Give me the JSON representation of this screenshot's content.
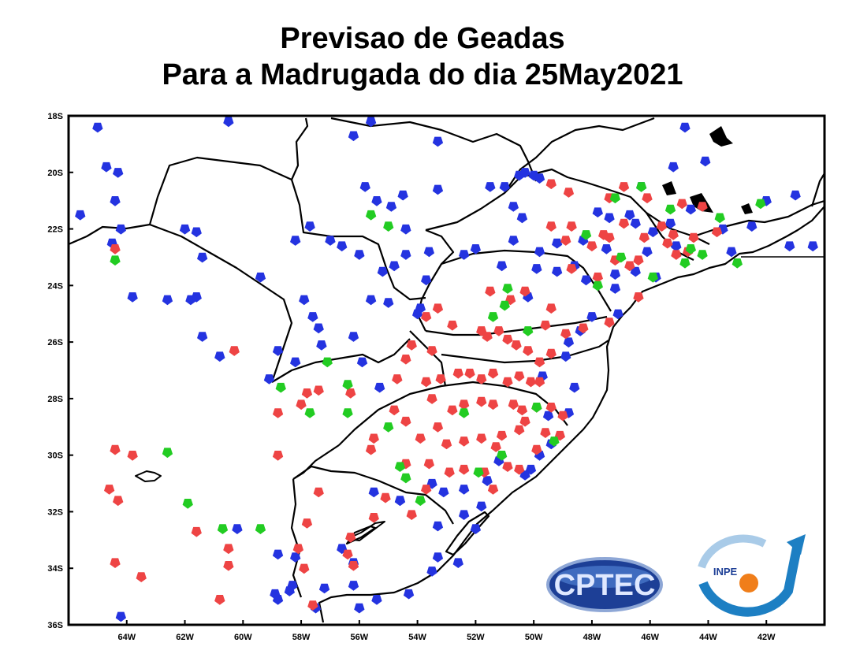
{
  "header": {
    "title_line1": "Previsao  de  Geadas",
    "title_line2": "Para a Madrugada do dia 25May2021"
  },
  "axes": {
    "y_ticks": [
      "18S",
      "20S",
      "22S",
      "24S",
      "26S",
      "28S",
      "30S",
      "32S",
      "34S",
      "36S"
    ],
    "x_ticks": [
      "64W",
      "62W",
      "60W",
      "58W",
      "56W",
      "54W",
      "52W",
      "50W",
      "48W",
      "46W",
      "44W",
      "42W"
    ],
    "lon_range": [
      -66,
      -40
    ],
    "lat_range": [
      -36,
      -18
    ]
  },
  "legend_colors": {
    "blue": "#2433e0",
    "red": "#ee4444",
    "green": "#22cc22"
  },
  "logos": {
    "cptec_text": "CPTEC",
    "inpe_text": "INPE"
  },
  "stations": {
    "blue": [
      [
        -65,
        -18.4
      ],
      [
        -60.5,
        -18.2
      ],
      [
        -64.7,
        -19.8
      ],
      [
        -64.3,
        -20
      ],
      [
        -56.2,
        -18.7
      ],
      [
        -55.6,
        -18.2
      ],
      [
        -53.3,
        -18.9
      ],
      [
        -65.6,
        -21.5
      ],
      [
        -64.4,
        -21
      ],
      [
        -64.2,
        -22
      ],
      [
        -64.5,
        -22.5
      ],
      [
        -62,
        -22
      ],
      [
        -61.4,
        -23
      ],
      [
        -59.4,
        -23.7
      ],
      [
        -58.2,
        -22.4
      ],
      [
        -57.7,
        -21.9
      ],
      [
        -57,
        -22.4
      ],
      [
        -55.8,
        -20.5
      ],
      [
        -55.4,
        -21
      ],
      [
        -54.9,
        -21.2
      ],
      [
        -54.5,
        -20.8
      ],
      [
        -53.3,
        -20.6
      ],
      [
        -54.4,
        -22
      ],
      [
        -54.4,
        -22.9
      ],
      [
        -54.8,
        -23.3
      ],
      [
        -55.2,
        -23.5
      ],
      [
        -56,
        -22.9
      ],
      [
        -56.6,
        -22.6
      ],
      [
        -55.6,
        -24.5
      ],
      [
        -55,
        -24.6
      ],
      [
        -53.9,
        -24.8
      ],
      [
        -54,
        -25
      ],
      [
        -53.6,
        -22.8
      ],
      [
        -53.7,
        -23.8
      ],
      [
        -52.4,
        -22.9
      ],
      [
        -52,
        -22.7
      ],
      [
        -51.5,
        -20.5
      ],
      [
        -51,
        -20.5
      ],
      [
        -50.7,
        -21.2
      ],
      [
        -50.5,
        -20.1
      ],
      [
        -50.3,
        -20
      ],
      [
        -50,
        -20.1
      ],
      [
        -49.8,
        -20.2
      ],
      [
        -50.4,
        -21.6
      ],
      [
        -50.7,
        -22.4
      ],
      [
        -49.8,
        -22.8
      ],
      [
        -49.2,
        -22.5
      ],
      [
        -48.3,
        -22.4
      ],
      [
        -47.8,
        -21.4
      ],
      [
        -47.4,
        -21.6
      ],
      [
        -46.7,
        -21.5
      ],
      [
        -46.5,
        -21.8
      ],
      [
        -45.9,
        -22.1
      ],
      [
        -45.3,
        -21.8
      ],
      [
        -46.1,
        -22.8
      ],
      [
        -45.1,
        -22.6
      ],
      [
        -45.8,
        -23.7
      ],
      [
        -46.5,
        -23.5
      ],
      [
        -47.2,
        -23.6
      ],
      [
        -47.5,
        -22.7
      ],
      [
        -48.6,
        -23.3
      ],
      [
        -48.2,
        -23.8
      ],
      [
        -49.2,
        -23.5
      ],
      [
        -49.9,
        -23.4
      ],
      [
        -50.2,
        -24.4
      ],
      [
        -51.1,
        -23.3
      ],
      [
        -47.2,
        -24.1
      ],
      [
        -47.1,
        -25
      ],
      [
        -48,
        -25.1
      ],
      [
        -48.4,
        -25.6
      ],
      [
        -48.8,
        -26
      ],
      [
        -48.9,
        -26.5
      ],
      [
        -43.2,
        -22.8
      ],
      [
        -43.5,
        -22
      ],
      [
        -42,
        -21
      ],
      [
        -42.5,
        -21.9
      ],
      [
        -41.2,
        -22.6
      ],
      [
        -41,
        -20.8
      ],
      [
        -40.4,
        -22.6
      ],
      [
        -44.8,
        -18.4
      ],
      [
        -45.2,
        -19.8
      ],
      [
        -44.1,
        -19.6
      ],
      [
        -44.6,
        -21.3
      ],
      [
        -46.3,
        -20.5
      ],
      [
        -63.8,
        -24.4
      ],
      [
        -62.6,
        -24.5
      ],
      [
        -61.8,
        -24.5
      ],
      [
        -61.4,
        -25.8
      ],
      [
        -60.8,
        -26.5
      ],
      [
        -59.1,
        -27.3
      ],
      [
        -57.9,
        -24.5
      ],
      [
        -57.6,
        -25.1
      ],
      [
        -57.4,
        -25.5
      ],
      [
        -57.3,
        -26.1
      ],
      [
        -58.8,
        -26.3
      ],
      [
        -58.2,
        -26.7
      ],
      [
        -56.2,
        -25.8
      ],
      [
        -55.9,
        -26.7
      ],
      [
        -55.3,
        -27.6
      ],
      [
        -49.7,
        -27.2
      ],
      [
        -49.5,
        -28.6
      ],
      [
        -48.6,
        -27.6
      ],
      [
        -48.8,
        -28.5
      ],
      [
        -49.4,
        -29.6
      ],
      [
        -49.8,
        -30
      ],
      [
        -50.1,
        -30.5
      ],
      [
        -50.3,
        -30.7
      ],
      [
        -51.1,
        -30
      ],
      [
        -51.2,
        -30.2
      ],
      [
        -51.6,
        -30.9
      ],
      [
        -52.4,
        -31.2
      ],
      [
        -53.1,
        -31.3
      ],
      [
        -53.5,
        -31
      ],
      [
        -55.5,
        -31.3
      ],
      [
        -54.6,
        -31.6
      ],
      [
        -56.6,
        -33.3
      ],
      [
        -56.2,
        -33.8
      ],
      [
        -56.2,
        -34.6
      ],
      [
        -57.2,
        -34.7
      ],
      [
        -58.2,
        -33.6
      ],
      [
        -58.3,
        -34.6
      ],
      [
        -58.4,
        -34.8
      ],
      [
        -57.5,
        -35.4
      ],
      [
        -56,
        -35.4
      ],
      [
        -55.4,
        -35.1
      ],
      [
        -54.3,
        -34.9
      ],
      [
        -53.5,
        -34.1
      ],
      [
        -53.3,
        -33.6
      ],
      [
        -53.3,
        -32.5
      ],
      [
        -52.4,
        -32.1
      ],
      [
        -52,
        -32.6
      ],
      [
        -51.8,
        -31.8
      ],
      [
        -52.6,
        -33.8
      ],
      [
        -54.6,
        -31.6
      ],
      [
        -60.2,
        -32.6
      ],
      [
        -61.6,
        -24.4
      ],
      [
        -61.6,
        -22.1
      ],
      [
        -64.2,
        -35.7
      ],
      [
        -58.8,
        -33.5
      ],
      [
        -58.8,
        -35.1
      ],
      [
        -58.9,
        -34.9
      ]
    ],
    "red": [
      [
        -64.4,
        -22.7
      ],
      [
        -64.4,
        -29.8
      ],
      [
        -63.8,
        -30
      ],
      [
        -64.6,
        -31.2
      ],
      [
        -64.3,
        -31.6
      ],
      [
        -64.4,
        -33.8
      ],
      [
        -63.5,
        -34.3
      ],
      [
        -61.6,
        -32.7
      ],
      [
        -60.8,
        -35.1
      ],
      [
        -60.5,
        -33.3
      ],
      [
        -60.5,
        -33.9
      ],
      [
        -60.3,
        -26.3
      ],
      [
        -58.8,
        -28.5
      ],
      [
        -58.8,
        -30
      ],
      [
        -58,
        -28.2
      ],
      [
        -57.8,
        -27.8
      ],
      [
        -57.4,
        -27.7
      ],
      [
        -56.3,
        -27.8
      ],
      [
        -54.7,
        -27.3
      ],
      [
        -54.2,
        -26.1
      ],
      [
        -54.4,
        -26.6
      ],
      [
        -53.5,
        -26.3
      ],
      [
        -53.7,
        -25.1
      ],
      [
        -52.8,
        -25.4
      ],
      [
        -51.8,
        -25.6
      ],
      [
        -51.6,
        -25.8
      ],
      [
        -51.2,
        -25.6
      ],
      [
        -50.9,
        -25.9
      ],
      [
        -50.6,
        -26.1
      ],
      [
        -50.2,
        -26.3
      ],
      [
        -49.8,
        -26.7
      ],
      [
        -49.4,
        -26.4
      ],
      [
        -49.8,
        -27.4
      ],
      [
        -50.1,
        -27.4
      ],
      [
        -50.5,
        -27.2
      ],
      [
        -50.9,
        -27.4
      ],
      [
        -51.4,
        -27.1
      ],
      [
        -51.8,
        -27.3
      ],
      [
        -52.2,
        -27.1
      ],
      [
        -52.6,
        -27.1
      ],
      [
        -53.2,
        -27.3
      ],
      [
        -53.7,
        -27.4
      ],
      [
        -53.5,
        -28
      ],
      [
        -52.8,
        -28.4
      ],
      [
        -52.4,
        -28.2
      ],
      [
        -51.8,
        -28.1
      ],
      [
        -51.4,
        -28.2
      ],
      [
        -50.7,
        -28.2
      ],
      [
        -50.4,
        -28.4
      ],
      [
        -49.9,
        -28.3
      ],
      [
        -49.4,
        -28.3
      ],
      [
        -49,
        -28.6
      ],
      [
        -49.6,
        -29.2
      ],
      [
        -49.1,
        -29.3
      ],
      [
        -50.3,
        -28.8
      ],
      [
        -50.5,
        -29.1
      ],
      [
        -51.1,
        -29.3
      ],
      [
        -51.3,
        -29.7
      ],
      [
        -51.8,
        -29.4
      ],
      [
        -52.4,
        -29.5
      ],
      [
        -53,
        -29.6
      ],
      [
        -53.3,
        -29
      ],
      [
        -53.9,
        -29.4
      ],
      [
        -54.4,
        -28.8
      ],
      [
        -54.8,
        -28.4
      ],
      [
        -55.5,
        -29.4
      ],
      [
        -55.6,
        -29.8
      ],
      [
        -54.4,
        -30.3
      ],
      [
        -53.6,
        -30.3
      ],
      [
        -52.4,
        -30.5
      ],
      [
        -51.7,
        -30.6
      ],
      [
        -51.4,
        -31.2
      ],
      [
        -50.5,
        -30.5
      ],
      [
        -50.9,
        -30.4
      ],
      [
        -49.9,
        -29.8
      ],
      [
        -52.9,
        -30.6
      ],
      [
        -53.7,
        -31.2
      ],
      [
        -55.1,
        -31.5
      ],
      [
        -55.5,
        -32.2
      ],
      [
        -54.2,
        -32.1
      ],
      [
        -57.4,
        -31.3
      ],
      [
        -57.8,
        -32.4
      ],
      [
        -58.1,
        -33.3
      ],
      [
        -57.9,
        -34
      ],
      [
        -57.6,
        -35.3
      ],
      [
        -56.3,
        -32.9
      ],
      [
        -56.4,
        -33.5
      ],
      [
        -56.2,
        -33.9
      ],
      [
        -50.3,
        -24.2
      ],
      [
        -49.4,
        -24.8
      ],
      [
        -49.6,
        -25.4
      ],
      [
        -48.9,
        -25.7
      ],
      [
        -48.3,
        -25.5
      ],
      [
        -47.4,
        -25.3
      ],
      [
        -48.7,
        -23.4
      ],
      [
        -48.9,
        -22.4
      ],
      [
        -49.4,
        -21.9
      ],
      [
        -48.7,
        -21.9
      ],
      [
        -48,
        -22.6
      ],
      [
        -47.4,
        -22.3
      ],
      [
        -46.9,
        -21.8
      ],
      [
        -46.2,
        -22.3
      ],
      [
        -45.6,
        -21.9
      ],
      [
        -45.2,
        -22.2
      ],
      [
        -44.5,
        -22.3
      ],
      [
        -44.2,
        -21.2
      ],
      [
        -43.7,
        -22.1
      ],
      [
        -44.9,
        -21.1
      ],
      [
        -46.1,
        -20.9
      ],
      [
        -46.9,
        -20.5
      ],
      [
        -47.4,
        -20.9
      ],
      [
        -48.8,
        -20.7
      ],
      [
        -49.4,
        -20.4
      ],
      [
        -47.6,
        -22.2
      ],
      [
        -47.2,
        -23.1
      ],
      [
        -46.7,
        -23.3
      ],
      [
        -46.4,
        -23.1
      ],
      [
        -45.1,
        -22.9
      ],
      [
        -45.4,
        -22.5
      ],
      [
        -44.7,
        -22.8
      ],
      [
        -47.8,
        -23.7
      ],
      [
        -46.4,
        -24.4
      ],
      [
        -51.5,
        -24.2
      ],
      [
        -50.8,
        -24.5
      ],
      [
        -53.3,
        -24.8
      ]
    ],
    "green": [
      [
        -64.4,
        -23.1
      ],
      [
        -61.9,
        -31.7
      ],
      [
        -62.6,
        -29.9
      ],
      [
        -60.7,
        -32.6
      ],
      [
        -59.4,
        -32.6
      ],
      [
        -58.7,
        -27.6
      ],
      [
        -57.7,
        -28.5
      ],
      [
        -56.4,
        -27.5
      ],
      [
        -57.1,
        -26.7
      ],
      [
        -55,
        -29
      ],
      [
        -56.4,
        -28.5
      ],
      [
        -55.6,
        -21.5
      ],
      [
        -55,
        -21.9
      ],
      [
        -51.4,
        -25.1
      ],
      [
        -51,
        -24.7
      ],
      [
        -50.9,
        -24.1
      ],
      [
        -49.9,
        -28.3
      ],
      [
        -50.2,
        -25.6
      ],
      [
        -51.1,
        -30
      ],
      [
        -54.4,
        -30.8
      ],
      [
        -54.6,
        -30.4
      ],
      [
        -53.9,
        -31.6
      ],
      [
        -52.4,
        -28.5
      ],
      [
        -51.9,
        -30.6
      ],
      [
        -49.3,
        -29.5
      ],
      [
        -48.2,
        -22.2
      ],
      [
        -47.2,
        -20.9
      ],
      [
        -46.3,
        -20.5
      ],
      [
        -45.3,
        -21.3
      ],
      [
        -44.6,
        -22.7
      ],
      [
        -44.2,
        -22.9
      ],
      [
        -43,
        -23.2
      ],
      [
        -44.8,
        -23.2
      ],
      [
        -45.9,
        -23.7
      ],
      [
        -43.6,
        -21.6
      ],
      [
        -42.2,
        -21.1
      ],
      [
        -47,
        -23
      ],
      [
        -47.8,
        -24
      ]
    ]
  }
}
